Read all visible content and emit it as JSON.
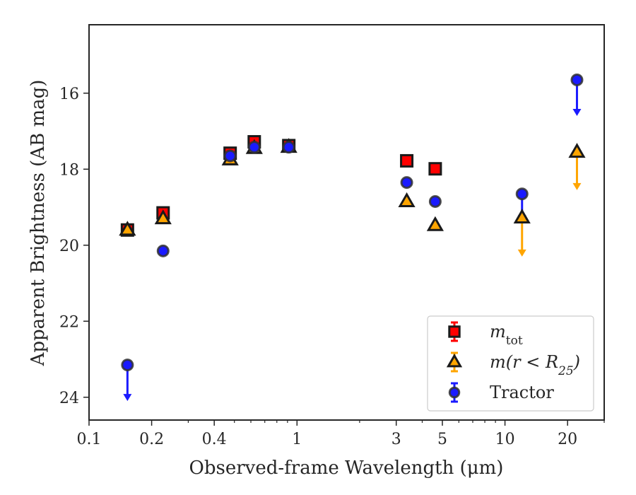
{
  "chart_data": {
    "type": "scatter",
    "xlabel": "Observed-frame Wavelength (μm)",
    "ylabel": "Apparent Brightness (AB mag)",
    "x_scale": "log",
    "y_inverted": true,
    "xlim": [
      0.1,
      30
    ],
    "ylim": [
      24.6,
      14.2
    ],
    "x_ticks": [
      {
        "value": 0.1,
        "label": "0.1"
      },
      {
        "value": 0.2,
        "label": "0.2"
      },
      {
        "value": 0.4,
        "label": "0.4"
      },
      {
        "value": 1,
        "label": "1"
      },
      {
        "value": 3,
        "label": "3"
      },
      {
        "value": 5,
        "label": "5"
      },
      {
        "value": 10,
        "label": "10"
      },
      {
        "value": 20,
        "label": "20"
      }
    ],
    "y_ticks": [
      {
        "value": 16,
        "label": "16"
      },
      {
        "value": 18,
        "label": "18"
      },
      {
        "value": 20,
        "label": "20"
      },
      {
        "value": 22,
        "label": "22"
      },
      {
        "value": 24,
        "label": "24"
      }
    ],
    "legend_position": "lower-right",
    "series": [
      {
        "label_main": "m",
        "label_sub": "tot",
        "marker": "square",
        "color": "#ff0000",
        "edge": "#1a1a1a",
        "points": [
          {
            "x": 0.153,
            "y": 19.6
          },
          {
            "x": 0.227,
            "y": 19.15
          },
          {
            "x": 0.477,
            "y": 17.58
          },
          {
            "x": 0.623,
            "y": 17.28
          },
          {
            "x": 0.913,
            "y": 17.38
          },
          {
            "x": 3.37,
            "y": 17.78
          },
          {
            "x": 4.62,
            "y": 17.99
          }
        ]
      },
      {
        "label_main": "m(r < R",
        "label_sub": "25",
        "label_end": ")",
        "marker": "triangle",
        "color": "#ffa500",
        "edge": "#1a1a1a",
        "points": [
          {
            "x": 0.153,
            "y": 19.6
          },
          {
            "x": 0.227,
            "y": 19.3
          },
          {
            "x": 0.477,
            "y": 17.75
          },
          {
            "x": 0.623,
            "y": 17.45
          },
          {
            "x": 0.913,
            "y": 17.42
          },
          {
            "x": 3.37,
            "y": 18.85
          },
          {
            "x": 4.62,
            "y": 19.48
          },
          {
            "x": 12.08,
            "y": 19.28,
            "upper_limit": true,
            "arrow_to": 20.3
          },
          {
            "x": 22.19,
            "y": 17.55,
            "upper_limit": true,
            "arrow_to": 18.55
          }
        ]
      },
      {
        "label_main": "Tractor",
        "marker": "circle",
        "color": "#1a1aff",
        "edge": "#333333",
        "points": [
          {
            "x": 0.153,
            "y": 23.15,
            "upper_limit": true,
            "arrow_to": 24.1
          },
          {
            "x": 0.227,
            "y": 20.15
          },
          {
            "x": 0.477,
            "y": 17.65
          },
          {
            "x": 0.623,
            "y": 17.42
          },
          {
            "x": 0.913,
            "y": 17.42
          },
          {
            "x": 3.37,
            "y": 18.35
          },
          {
            "x": 4.62,
            "y": 18.85
          },
          {
            "x": 12.08,
            "y": 18.65,
            "upper_limit": true,
            "arrow_to": 19.4
          },
          {
            "x": 22.19,
            "y": 15.65,
            "upper_limit": true,
            "arrow_to": 16.6
          }
        ]
      }
    ]
  }
}
